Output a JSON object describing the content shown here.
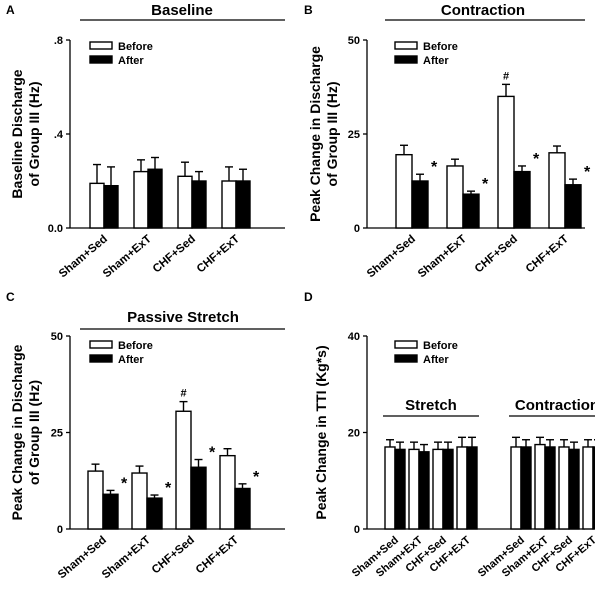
{
  "colors": {
    "before": "#ffffff",
    "after": "#000000",
    "axis": "#000000"
  },
  "legend": {
    "before": "Before",
    "after": "After"
  },
  "chart_data": [
    {
      "id": "A",
      "type": "bar",
      "panel_label": "A",
      "title": "Baseline",
      "ylabel": "Baseline Discharge\nof Group III (Hz)",
      "ylim": [
        0,
        0.8
      ],
      "yticks": [
        0,
        0.4,
        0.8
      ],
      "ytick_labels": [
        "0.0",
        ".4",
        ".8"
      ],
      "categories": [
        "Sham+Sed",
        "Sham+ExT",
        "CHF+Sed",
        "CHF+ExT"
      ],
      "series": [
        {
          "name": "Before",
          "values": [
            0.19,
            0.24,
            0.22,
            0.2
          ],
          "errors": [
            0.08,
            0.05,
            0.06,
            0.06
          ]
        },
        {
          "name": "After",
          "values": [
            0.18,
            0.25,
            0.2,
            0.2
          ],
          "errors": [
            0.08,
            0.05,
            0.04,
            0.05
          ]
        }
      ],
      "annotations": [],
      "legend_position": "top-left"
    },
    {
      "id": "B",
      "type": "bar",
      "panel_label": "B",
      "title": "Contraction",
      "ylabel": "Peak Change in Discharge\nof Group III (Hz)",
      "ylim": [
        0,
        50
      ],
      "yticks": [
        0,
        25,
        50
      ],
      "ytick_labels": [
        "0",
        "25",
        "50"
      ],
      "categories": [
        "Sham+Sed",
        "Sham+ExT",
        "CHF+Sed",
        "CHF+ExT"
      ],
      "series": [
        {
          "name": "Before",
          "values": [
            19.5,
            16.5,
            35,
            20
          ],
          "errors": [
            2.5,
            1.8,
            3.2,
            1.8
          ]
        },
        {
          "name": "After",
          "values": [
            12.5,
            9,
            15,
            11.5
          ],
          "errors": [
            1.8,
            0.8,
            1.5,
            1.5
          ]
        }
      ],
      "annotations": [
        {
          "category": 0,
          "series": "After",
          "text": "*"
        },
        {
          "category": 1,
          "series": "After",
          "text": "*"
        },
        {
          "category": 2,
          "series": "Before",
          "text": "#"
        },
        {
          "category": 2,
          "series": "After",
          "text": "*"
        },
        {
          "category": 3,
          "series": "After",
          "text": "*"
        }
      ],
      "legend_position": "top-left"
    },
    {
      "id": "C",
      "type": "bar",
      "panel_label": "C",
      "title": "Passive Stretch",
      "ylabel": "Peak Change in Discharge\nof Group III (Hz)",
      "ylim": [
        0,
        50
      ],
      "yticks": [
        0,
        25,
        50
      ],
      "ytick_labels": [
        "0",
        "25",
        "50"
      ],
      "categories": [
        "Sham+Sed",
        "Sham+ExT",
        "CHF+Sed",
        "CHF+ExT"
      ],
      "series": [
        {
          "name": "Before",
          "values": [
            15,
            14.5,
            30.5,
            19
          ],
          "errors": [
            1.8,
            1.8,
            2.5,
            1.8
          ]
        },
        {
          "name": "After",
          "values": [
            9,
            8,
            16,
            10.5
          ],
          "errors": [
            1.0,
            0.8,
            2.0,
            1.2
          ]
        }
      ],
      "annotations": [
        {
          "category": 0,
          "series": "After",
          "text": "*"
        },
        {
          "category": 1,
          "series": "After",
          "text": "*"
        },
        {
          "category": 2,
          "series": "Before",
          "text": "#"
        },
        {
          "category": 2,
          "series": "After",
          "text": "*"
        },
        {
          "category": 3,
          "series": "After",
          "text": "*"
        }
      ],
      "legend_position": "top-left"
    },
    {
      "id": "D",
      "type": "bar",
      "panel_label": "D",
      "title": "",
      "ylabel": "Peak Change in TTI (Kg*s)",
      "ylim": [
        0,
        40
      ],
      "yticks": [
        0,
        20,
        40
      ],
      "ytick_labels": [
        "0",
        "20",
        "40"
      ],
      "groups": [
        "Stretch",
        "Contraction"
      ],
      "categories": [
        "Sham+Sed",
        "Sham+ExT",
        "CHF+Sed",
        "CHF+ExT",
        "Sham+Sed",
        "Sham+ExT",
        "CHF+Sed",
        "CHF+ExT"
      ],
      "series": [
        {
          "name": "Before",
          "values": [
            17,
            16.5,
            16.5,
            17,
            17,
            17.5,
            17,
            17
          ],
          "errors": [
            1.5,
            1.5,
            1.5,
            2.0,
            2.0,
            1.5,
            1.5,
            1.5
          ]
        },
        {
          "name": "After",
          "values": [
            16.5,
            16,
            16.5,
            17,
            17,
            17,
            16.5,
            17
          ],
          "errors": [
            1.5,
            1.5,
            1.5,
            2.0,
            1.5,
            1.5,
            1.5,
            1.5
          ]
        }
      ],
      "annotations": [],
      "legend_position": "top-left"
    }
  ]
}
